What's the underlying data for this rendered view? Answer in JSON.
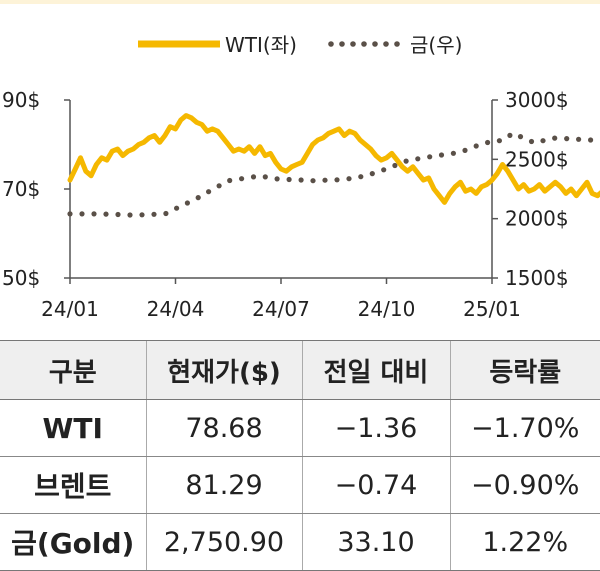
{
  "chart_data": {
    "type": "line",
    "x_ticks": [
      "24/01",
      "24/04",
      "24/07",
      "24/10",
      "25/01"
    ],
    "y_left": {
      "ticks": [
        "90$",
        "70$",
        "50$"
      ],
      "range": [
        50,
        90
      ]
    },
    "y_right": {
      "ticks": [
        "3000$",
        "2500$",
        "2000$",
        "1500$"
      ],
      "range": [
        1500,
        3000
      ]
    },
    "legend": [
      "WTI(좌)",
      "금(우)"
    ],
    "legend_placement": "top-center",
    "series": [
      {
        "name": "WTI(좌)",
        "axis": "left",
        "color": "#f5b800",
        "style": "solid",
        "points": [
          [
            0.0,
            72.0
          ],
          [
            0.05,
            74.5
          ],
          [
            0.1,
            77.0
          ],
          [
            0.15,
            74.0
          ],
          [
            0.2,
            73.0
          ],
          [
            0.25,
            75.5
          ],
          [
            0.3,
            77.0
          ],
          [
            0.35,
            76.5
          ],
          [
            0.4,
            78.5
          ],
          [
            0.45,
            79.0
          ],
          [
            0.5,
            77.5
          ],
          [
            0.55,
            78.5
          ],
          [
            0.6,
            79.0
          ],
          [
            0.65,
            80.0
          ],
          [
            0.7,
            80.5
          ],
          [
            0.75,
            81.5
          ],
          [
            0.8,
            82.0
          ],
          [
            0.85,
            80.5
          ],
          [
            0.9,
            82.0
          ],
          [
            0.95,
            84.0
          ],
          [
            1.0,
            83.5
          ],
          [
            1.05,
            85.5
          ],
          [
            1.1,
            86.5
          ],
          [
            1.15,
            86.0
          ],
          [
            1.2,
            85.0
          ],
          [
            1.25,
            84.5
          ],
          [
            1.3,
            83.0
          ],
          [
            1.35,
            83.5
          ],
          [
            1.4,
            83.0
          ],
          [
            1.45,
            81.5
          ],
          [
            1.5,
            80.0
          ],
          [
            1.55,
            78.5
          ],
          [
            1.6,
            79.0
          ],
          [
            1.65,
            78.5
          ],
          [
            1.7,
            79.5
          ],
          [
            1.75,
            78.0
          ],
          [
            1.8,
            79.5
          ],
          [
            1.85,
            77.5
          ],
          [
            1.9,
            78.0
          ],
          [
            1.95,
            76.0
          ],
          [
            2.0,
            74.5
          ],
          [
            2.05,
            74.0
          ],
          [
            2.1,
            75.0
          ],
          [
            2.15,
            75.5
          ],
          [
            2.2,
            76.0
          ],
          [
            2.25,
            78.0
          ],
          [
            2.3,
            80.0
          ],
          [
            2.35,
            81.0
          ],
          [
            2.4,
            81.5
          ],
          [
            2.45,
            82.5
          ],
          [
            2.5,
            83.0
          ],
          [
            2.55,
            83.5
          ],
          [
            2.6,
            82.0
          ],
          [
            2.65,
            83.0
          ],
          [
            2.7,
            82.5
          ],
          [
            2.75,
            81.0
          ],
          [
            2.8,
            80.0
          ],
          [
            2.85,
            79.0
          ],
          [
            2.9,
            77.5
          ],
          [
            2.95,
            76.5
          ],
          [
            3.0,
            77.0
          ],
          [
            3.05,
            78.0
          ],
          [
            3.1,
            76.5
          ],
          [
            3.15,
            75.0
          ],
          [
            3.2,
            74.0
          ],
          [
            3.25,
            75.0
          ],
          [
            3.3,
            73.5
          ],
          [
            3.35,
            72.0
          ],
          [
            3.4,
            72.5
          ],
          [
            3.45,
            70.0
          ],
          [
            3.5,
            68.5
          ],
          [
            3.55,
            67.0
          ],
          [
            3.6,
            69.0
          ],
          [
            3.65,
            70.5
          ],
          [
            3.7,
            71.5
          ],
          [
            3.75,
            69.5
          ],
          [
            3.8,
            70.0
          ],
          [
            3.85,
            69.0
          ],
          [
            3.9,
            70.5
          ],
          [
            3.95,
            71.0
          ],
          [
            4.0,
            72.0
          ],
          [
            4.05,
            73.5
          ],
          [
            4.1,
            75.5
          ],
          [
            4.15,
            74.0
          ],
          [
            4.2,
            72.0
          ],
          [
            4.25,
            70.0
          ],
          [
            4.3,
            71.0
          ],
          [
            4.35,
            69.5
          ],
          [
            4.4,
            70.0
          ],
          [
            4.45,
            71.0
          ],
          [
            4.5,
            69.5
          ],
          [
            4.55,
            70.5
          ],
          [
            4.6,
            71.5
          ],
          [
            4.65,
            70.5
          ],
          [
            4.7,
            69.0
          ],
          [
            4.75,
            70.0
          ],
          [
            4.8,
            68.5
          ],
          [
            4.85,
            70.0
          ],
          [
            4.9,
            71.5
          ],
          [
            4.95,
            69.0
          ],
          [
            5.0,
            68.5
          ],
          [
            5.05,
            69.5
          ],
          [
            5.1,
            70.5
          ],
          [
            5.15,
            68.5
          ],
          [
            5.2,
            69.5
          ],
          [
            5.25,
            70.5
          ],
          [
            5.3,
            69.0
          ],
          [
            5.35,
            70.0
          ],
          [
            5.4,
            71.0
          ],
          [
            5.45,
            70.0
          ],
          [
            5.5,
            69.5
          ],
          [
            5.55,
            68.5
          ],
          [
            5.6,
            70.0
          ],
          [
            5.65,
            71.5
          ],
          [
            5.7,
            70.5
          ],
          [
            5.75,
            70.0
          ],
          [
            5.8,
            69.0
          ],
          [
            5.85,
            70.5
          ],
          [
            5.9,
            71.5
          ],
          [
            5.95,
            71.0
          ],
          [
            6.0,
            71.5
          ],
          [
            6.05,
            72.0
          ],
          [
            6.1,
            73.5
          ],
          [
            6.15,
            76.0
          ],
          [
            6.2,
            79.0
          ]
        ]
      },
      {
        "name": "금(우)",
        "axis": "right",
        "color": "#5a5048",
        "style": "dotted",
        "points": [
          [
            0.0,
            2040
          ],
          [
            0.3,
            2040
          ],
          [
            0.6,
            2030
          ],
          [
            0.9,
            2040
          ],
          [
            1.2,
            2170
          ],
          [
            1.5,
            2320
          ],
          [
            1.8,
            2360
          ],
          [
            2.0,
            2330
          ],
          [
            2.1,
            2330
          ],
          [
            2.3,
            2320
          ],
          [
            2.6,
            2330
          ],
          [
            2.8,
            2360
          ],
          [
            3.0,
            2420
          ],
          [
            3.2,
            2490
          ],
          [
            3.4,
            2520
          ],
          [
            3.7,
            2560
          ],
          [
            3.9,
            2630
          ],
          [
            4.0,
            2650
          ],
          [
            4.1,
            2660
          ],
          [
            4.2,
            2720
          ],
          [
            4.4,
            2640
          ],
          [
            4.6,
            2680
          ],
          [
            5.0,
            2660
          ],
          [
            5.4,
            2630
          ],
          [
            5.8,
            2650
          ],
          [
            6.0,
            2660
          ],
          [
            6.2,
            2700
          ]
        ]
      }
    ]
  },
  "table": {
    "headers": [
      "구분",
      "현재가($)",
      "전일 대비",
      "등락률"
    ],
    "rows": [
      [
        "WTI",
        "78.68",
        "−1.36",
        "−1.70%"
      ],
      [
        "브렌트",
        "81.29",
        "−0.74",
        "−0.90%"
      ],
      [
        "금(Gold)",
        "2,750.90",
        "33.10",
        "1.22%"
      ]
    ]
  }
}
